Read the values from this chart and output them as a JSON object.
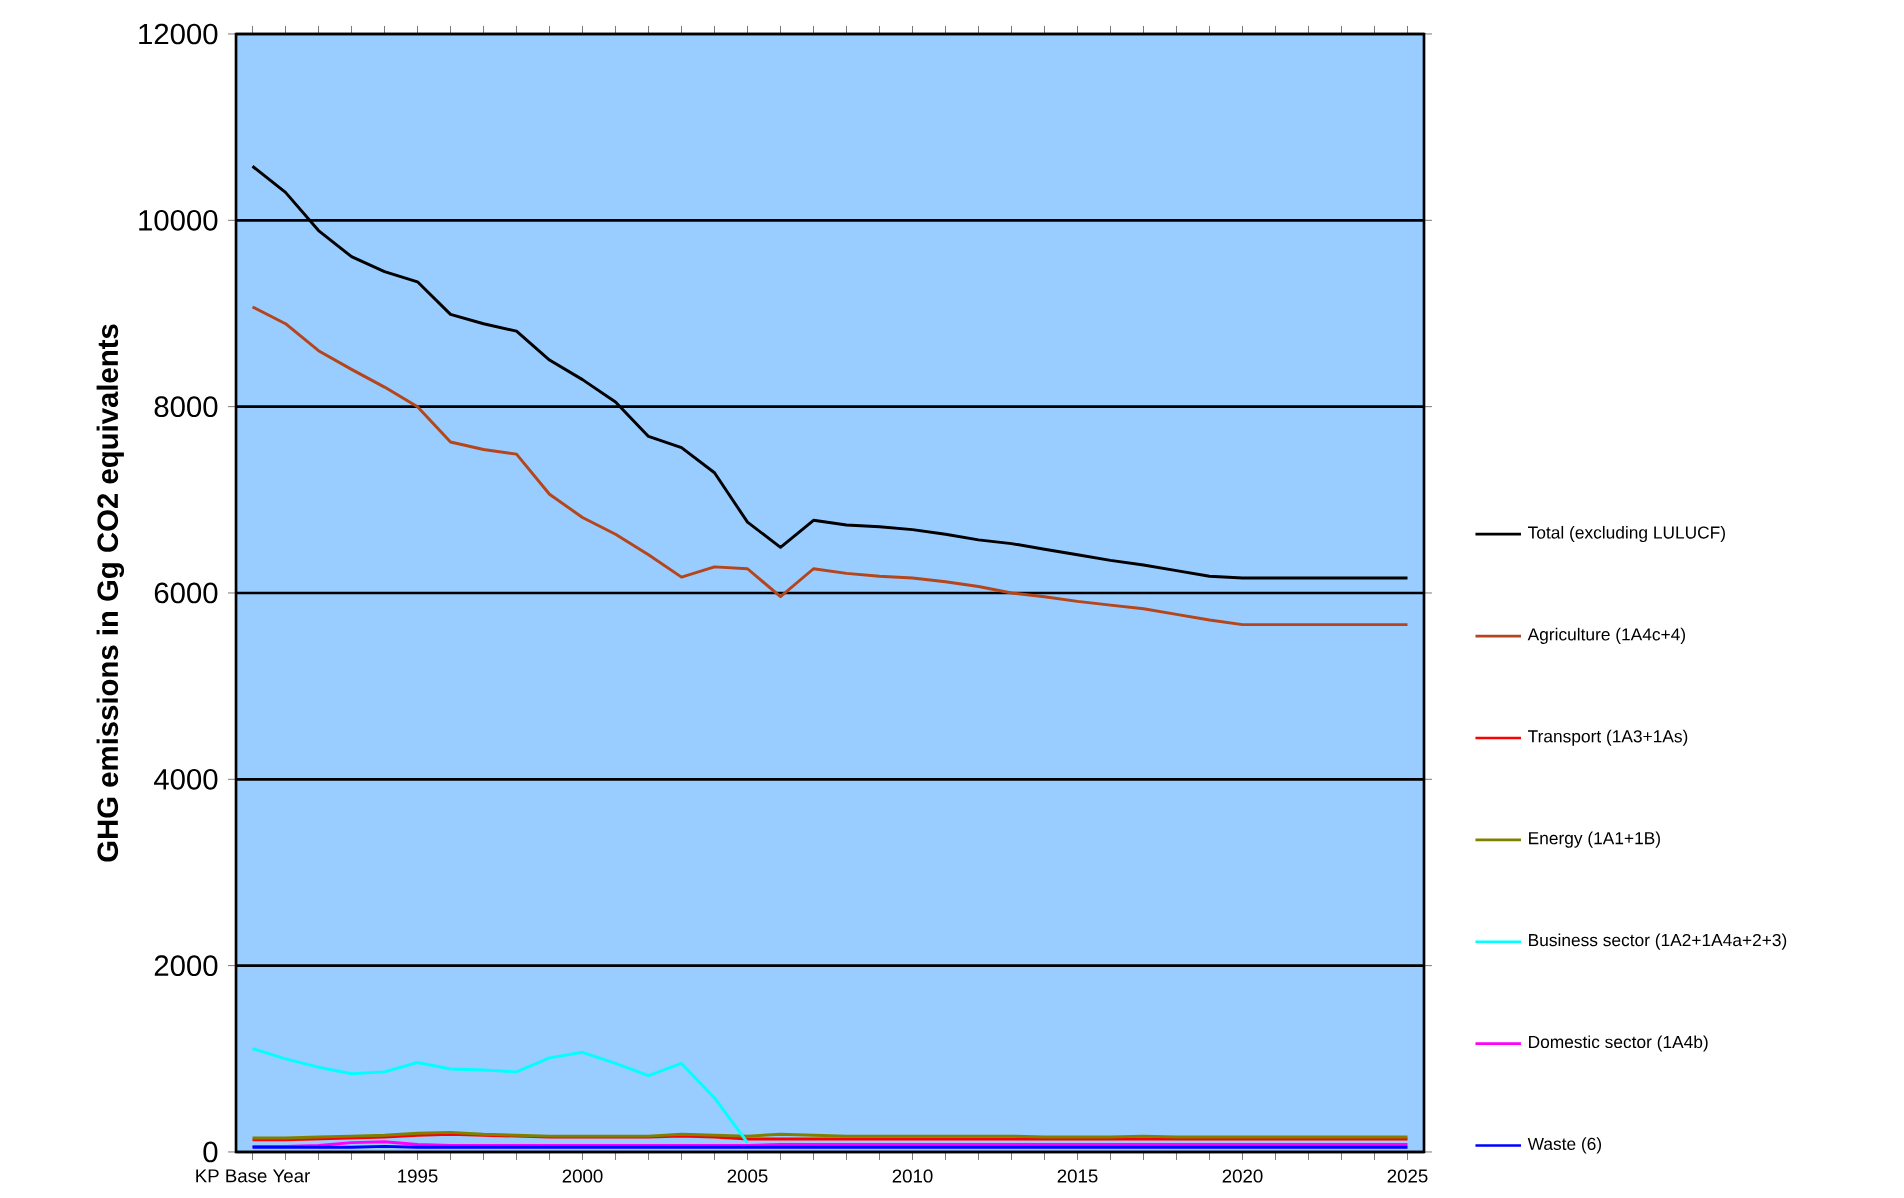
{
  "chart_data": {
    "type": "line",
    "ylabel": "GHG emissions in Gg CO2 equivalents",
    "categories": [
      "KP Base Year",
      null,
      null,
      null,
      null,
      "1995",
      null,
      null,
      null,
      null,
      "2000",
      null,
      null,
      null,
      null,
      "2005",
      null,
      null,
      null,
      null,
      "2010",
      null,
      null,
      null,
      null,
      "2015",
      null,
      null,
      null,
      null,
      "2020",
      null,
      null,
      null,
      null,
      "2025"
    ],
    "ylim": [
      0,
      12000
    ],
    "yticks": [
      0,
      2000,
      4000,
      6000,
      8000,
      10000,
      12000
    ],
    "grid": "y",
    "legend": "right",
    "marker": "none",
    "line_style": "solid",
    "series": [
      {
        "name": "Total (excluding LULUCF)",
        "color": "#000000",
        "values": [
          10580,
          10300,
          9890,
          9610,
          9450,
          9340,
          8990,
          8890,
          8810,
          8500,
          8290,
          8050,
          7680,
          7560,
          7290,
          6760,
          6490,
          6780,
          6730,
          6710,
          6680,
          6630,
          6570,
          6530,
          6470,
          6410,
          6350,
          6300,
          6240,
          6180,
          6160,
          6160,
          6160,
          6160,
          6160,
          6160
        ]
      },
      {
        "name": "Agriculture (1A4c+4)",
        "color": "#b5451b",
        "values": [
          9070,
          8890,
          8600,
          8400,
          8210,
          8000,
          7620,
          7540,
          7490,
          7060,
          6810,
          6630,
          6410,
          6170,
          6280,
          6260,
          5960,
          6260,
          6210,
          6180,
          6160,
          6120,
          6070,
          6000,
          5960,
          5910,
          5870,
          5830,
          5770,
          5710,
          5660,
          5660,
          5660,
          5660,
          5660,
          5660
        ]
      },
      {
        "name": "Transport (1A3+1As)",
        "color": "#ff0000",
        "values": [
          130,
          130,
          140,
          150,
          160,
          180,
          190,
          180,
          170,
          160,
          160,
          160,
          160,
          170,
          160,
          140,
          140,
          140,
          140,
          140,
          140,
          140,
          140,
          140,
          140,
          140,
          140,
          140,
          140,
          140,
          140,
          140,
          140,
          140,
          140,
          140
        ]
      },
      {
        "name": "Energy (1A1+1B)",
        "color": "#808000",
        "values": [
          150,
          150,
          160,
          170,
          180,
          200,
          210,
          190,
          180,
          170,
          170,
          170,
          170,
          190,
          180,
          170,
          190,
          180,
          170,
          170,
          170,
          170,
          170,
          170,
          160,
          160,
          160,
          170,
          160,
          160,
          160,
          160,
          160,
          160,
          160,
          160
        ]
      },
      {
        "name": "Business sector (1A2+1A4a+2+3)",
        "color": "#00ffff",
        "values": [
          1110,
          1000,
          910,
          840,
          860,
          960,
          890,
          880,
          860,
          1010,
          1070,
          950,
          820,
          950,
          580,
          100,
          null,
          null,
          null,
          null,
          null,
          null,
          null,
          null,
          null,
          null,
          null,
          null,
          null,
          null,
          null,
          null,
          null,
          null,
          null,
          null
        ]
      },
      {
        "name": "Domestic sector (1A4b)",
        "color": "#ff00ff",
        "values": [
          60,
          60,
          70,
          100,
          110,
          80,
          70,
          70,
          70,
          70,
          70,
          70,
          70,
          70,
          70,
          70,
          80,
          80,
          80,
          80,
          80,
          80,
          80,
          80,
          80,
          80,
          80,
          80,
          80,
          80,
          80,
          80,
          80,
          80,
          80,
          80
        ]
      },
      {
        "name": "Waste (6)",
        "color": "#0000ff",
        "values": [
          50,
          50,
          50,
          50,
          60,
          50,
          50,
          50,
          50,
          50,
          50,
          50,
          50,
          50,
          50,
          50,
          50,
          50,
          50,
          50,
          50,
          50,
          50,
          50,
          50,
          50,
          50,
          50,
          50,
          50,
          50,
          50,
          50,
          50,
          50,
          50
        ]
      }
    ]
  }
}
